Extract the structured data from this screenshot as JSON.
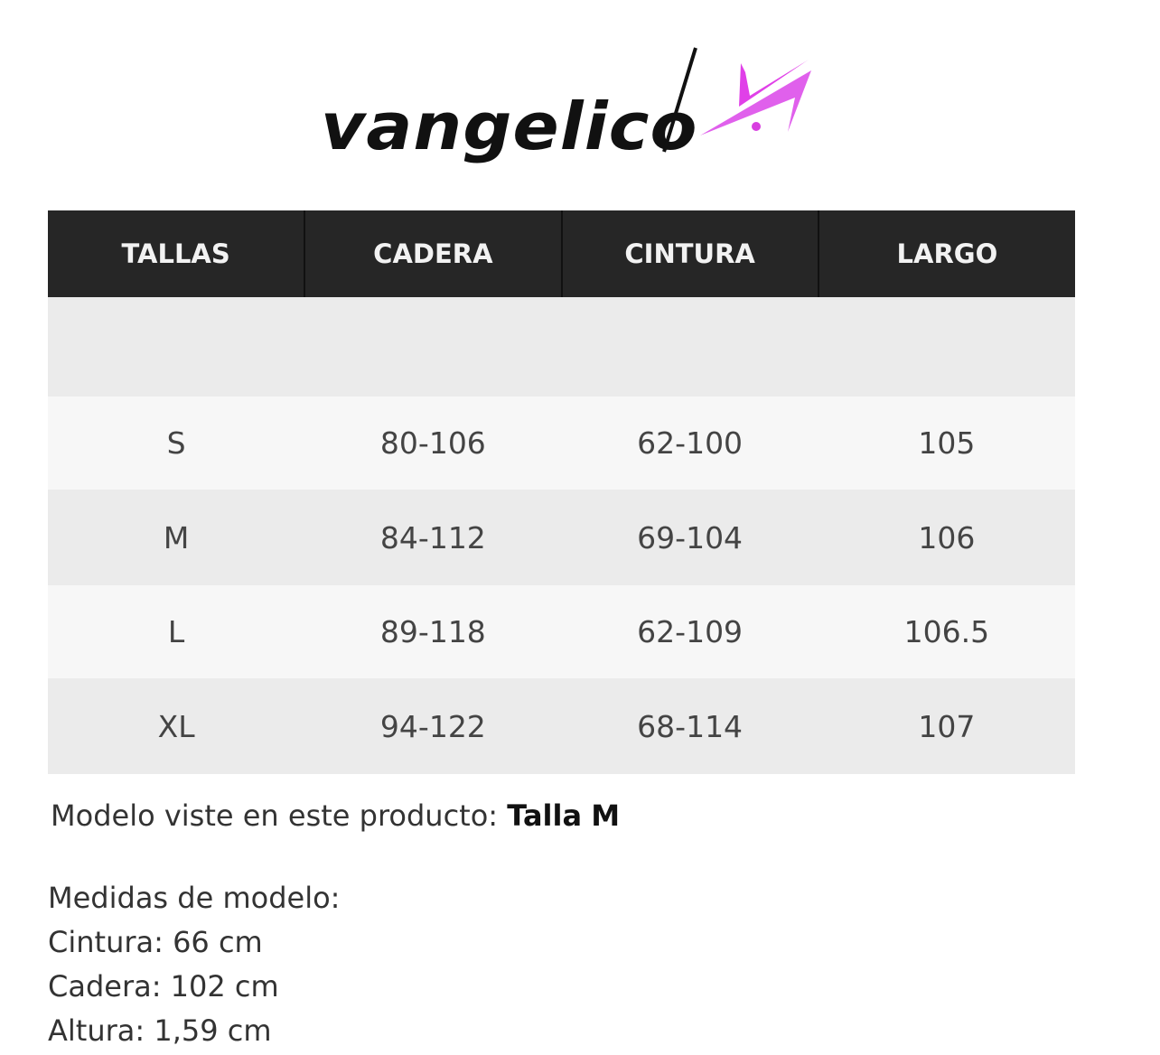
{
  "brand": {
    "name": "vangelico",
    "logo_accent_color": "#e040e8",
    "logo_icon": "pink-swoosh-logo"
  },
  "table": {
    "headers": [
      "TALLAS",
      "CADERA",
      "CINTURA",
      "LARGO"
    ],
    "rows": [
      [
        "S",
        "80-106",
        "62-100",
        "105"
      ],
      [
        "M",
        "84-112",
        "69-104",
        "106"
      ],
      [
        "L",
        "89-118",
        "62-109",
        "106.5"
      ],
      [
        "XL",
        "94-122",
        "68-114",
        "107"
      ]
    ]
  },
  "model": {
    "prefix": "Modelo viste en este producto:",
    "size_label": "Talla",
    "size": "M"
  },
  "measures": {
    "title": "Medidas de modelo:",
    "lines": [
      "Cintura: 66 cm",
      "Cadera: 102 cm",
      "Altura: 1,59 cm"
    ]
  }
}
